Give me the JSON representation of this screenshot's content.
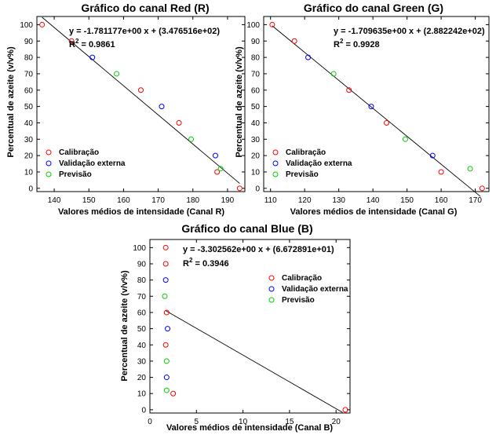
{
  "chart_data": [
    {
      "type": "scatter",
      "title": "Gráfico do canal Red (R)",
      "xlabel": "Valores médios de intensidade (Canal R)",
      "ylabel": "Percentual de azeite (v/v%)",
      "xlim": [
        135,
        195
      ],
      "ylim": [
        -2,
        105
      ],
      "xticks": [
        140,
        150,
        160,
        170,
        180,
        190
      ],
      "yticks": [
        0,
        10,
        20,
        30,
        40,
        50,
        60,
        70,
        80,
        90,
        100
      ],
      "equation": "y = -1.781177e+00 x + (3.476516e+02)",
      "r2_label": "R",
      "r2_sup": "2",
      "r2_value": " = 0.9861",
      "fit": {
        "slope": -1.781177,
        "intercept": 347.6516,
        "x_range": [
          136.5,
          193.5
        ]
      },
      "legend": {
        "position": "bottom-left"
      },
      "series": [
        {
          "name": "Calibração",
          "color": "#ff0000",
          "points": [
            [
              136.5,
              100
            ],
            [
              145,
              90
            ],
            [
              165,
              60
            ],
            [
              176,
              40
            ],
            [
              187,
              10
            ],
            [
              193.5,
              0
            ]
          ]
        },
        {
          "name": "Validação externa",
          "color": "#0000ff",
          "points": [
            [
              151,
              80
            ],
            [
              171,
              50
            ],
            [
              186.5,
              20
            ]
          ]
        },
        {
          "name": "Previsão",
          "color": "#00cc00",
          "points": [
            [
              158,
              70
            ],
            [
              179.5,
              30
            ],
            [
              188,
              12
            ]
          ]
        }
      ]
    },
    {
      "type": "scatter",
      "title": "Gráfico do canal Green (G)",
      "xlabel": "Valores médios de intensidade (Canal G)",
      "ylabel": "Percentual de azeite (v/v%)",
      "xlim": [
        108,
        174
      ],
      "ylim": [
        -2,
        105
      ],
      "xticks": [
        110,
        120,
        130,
        140,
        150,
        160,
        170
      ],
      "yticks": [
        0,
        10,
        20,
        30,
        40,
        50,
        60,
        70,
        80,
        90,
        100
      ],
      "equation": "y = -1.709635e+00 x + (2.882242e+02)",
      "r2_label": "R",
      "r2_sup": "2",
      "r2_value": " = 0.9928",
      "fit": {
        "slope": -1.709635,
        "intercept": 288.2242,
        "x_range": [
          110.5,
          171.5
        ]
      },
      "legend": {
        "position": "bottom-left"
      },
      "series": [
        {
          "name": "Calibração",
          "color": "#ff0000",
          "points": [
            [
              110.5,
              100
            ],
            [
              117,
              90
            ],
            [
              133,
              60
            ],
            [
              144,
              40
            ],
            [
              160,
              10
            ],
            [
              172,
              0
            ]
          ]
        },
        {
          "name": "Validação externa",
          "color": "#0000ff",
          "points": [
            [
              121,
              80
            ],
            [
              139.5,
              50
            ],
            [
              157.5,
              20
            ]
          ]
        },
        {
          "name": "Previsão",
          "color": "#00cc00",
          "points": [
            [
              128.5,
              70
            ],
            [
              149.5,
              30
            ],
            [
              168.5,
              12
            ]
          ]
        }
      ]
    },
    {
      "type": "scatter",
      "title": "Gráfico do canal Blue (B)",
      "xlabel": "Valores médios de intensidade (Canal B)",
      "ylabel": "Percentual de azeite (v/v%)",
      "xlim": [
        0,
        21.5
      ],
      "ylim": [
        -2,
        105
      ],
      "xticks": [
        0,
        5,
        10,
        15,
        20
      ],
      "yticks": [
        0,
        10,
        20,
        30,
        40,
        50,
        60,
        70,
        80,
        90,
        100
      ],
      "equation": "y = -3.302562e+00 x + (6.672891e+01)",
      "r2_label": "R",
      "r2_sup": "2",
      "r2_value": " = 0.3946",
      "fit": {
        "slope": -3.302562,
        "intercept": 66.72891,
        "x_range": [
          1.7,
          20.7
        ]
      },
      "legend": {
        "position": "top-right"
      },
      "series": [
        {
          "name": "Calibração",
          "color": "#ff0000",
          "points": [
            [
              1.7,
              100
            ],
            [
              1.7,
              90
            ],
            [
              1.8,
              60
            ],
            [
              1.7,
              40
            ],
            [
              2.5,
              10
            ],
            [
              21,
              0
            ]
          ]
        },
        {
          "name": "Validação externa",
          "color": "#0000ff",
          "points": [
            [
              1.7,
              80
            ],
            [
              1.9,
              50
            ],
            [
              1.8,
              20
            ]
          ]
        },
        {
          "name": "Previsão",
          "color": "#00cc00",
          "points": [
            [
              1.6,
              70
            ],
            [
              1.8,
              30
            ],
            [
              1.8,
              12
            ]
          ]
        }
      ]
    }
  ]
}
